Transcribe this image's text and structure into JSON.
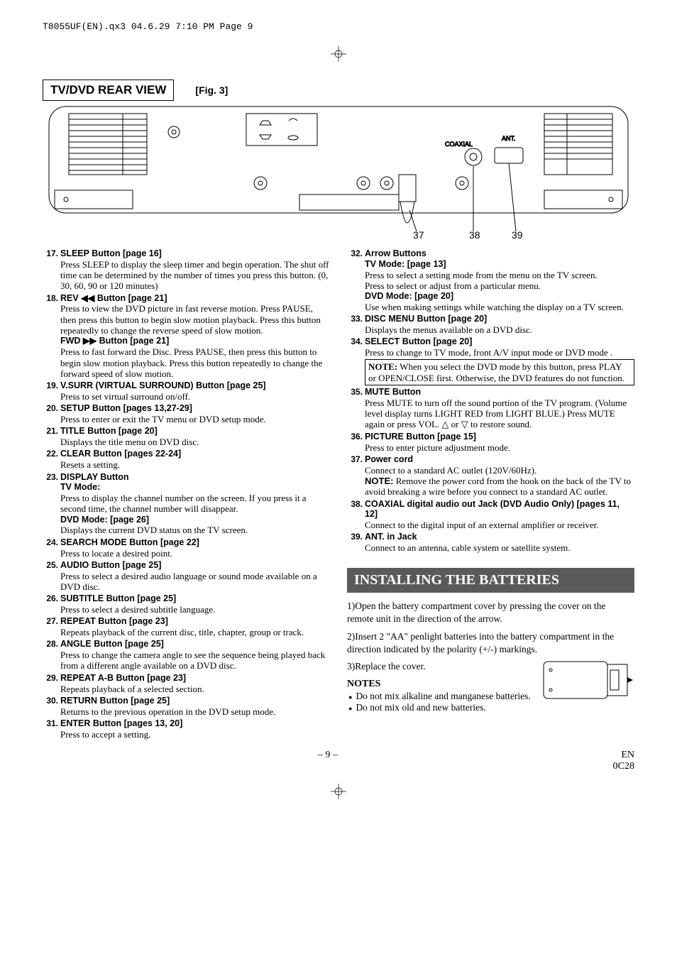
{
  "header": "T8055UF(EN).qx3  04.6.29  7:10 PM  Page 9",
  "rear_view_label": "TV/DVD REAR VIEW",
  "fig_label": "[Fig. 3]",
  "diagram": {
    "coaxial_label": "COAXIAL",
    "ant_label": "ANT.",
    "callouts": [
      "37",
      "38",
      "39"
    ]
  },
  "left": [
    {
      "n": "17.",
      "t": "SLEEP Button [page 16]",
      "d": [
        "Press SLEEP to display the sleep timer and begin operation. The shut off time can be determined by the number of times you press this button. (0, 30, 60, 90 or 120 minutes)"
      ]
    },
    {
      "n": "18.",
      "t": "REV ◀◀ Button [page 21]",
      "d": [
        "Press to view the DVD picture in fast reverse motion. Press PAUSE, then press this button to begin slow motion playback. Press this button repeatedly to change the reverse speed of slow motion."
      ],
      "sub": [
        {
          "t": "FWD ▶▶ Button [page 21]",
          "d": [
            "Press to fast forward the Disc. Press PAUSE, then press this button to begin slow motion playback. Press this button repeatedly to change the forward speed of slow motion."
          ]
        }
      ]
    },
    {
      "n": "19.",
      "t": "V.SURR (VIRTUAL SURROUND) Button [page 25]",
      "d": [
        "Press to set virtual surround on/off."
      ]
    },
    {
      "n": "20.",
      "t": "SETUP Button [pages 13,27-29]",
      "d": [
        "Press to enter or exit the TV menu or DVD setup mode."
      ]
    },
    {
      "n": "21.",
      "t": "TITLE Button [page 20]",
      "d": [
        "Displays the title menu on DVD disc."
      ]
    },
    {
      "n": "22.",
      "t": "CLEAR Button [pages 22-24]",
      "d": [
        "Resets a setting."
      ]
    },
    {
      "n": "23.",
      "t": "DISPLAY Button",
      "sub": [
        {
          "t": "TV Mode:",
          "d": [
            "Press to display the channel number on the screen. If you press it a second time, the channel number will disappear."
          ]
        },
        {
          "t": "DVD Mode: [page 26]",
          "d": [
            "Displays the current DVD status on the TV screen."
          ]
        }
      ]
    },
    {
      "n": "24.",
      "t": "SEARCH MODE Button [page 22]",
      "d": [
        "Press to locate a desired point."
      ]
    },
    {
      "n": "25.",
      "t": "AUDIO Button [page 25]",
      "d": [
        "Press to select a desired audio language or sound mode available on a DVD disc."
      ]
    },
    {
      "n": "26.",
      "t": "SUBTITLE Button [page 25]",
      "d": [
        "Press to select a desired subtitle language."
      ]
    },
    {
      "n": "27.",
      "t": "REPEAT Button [page 23]",
      "d": [
        "Repeats playback of the current disc, title, chapter, group or track."
      ]
    },
    {
      "n": "28.",
      "t": "ANGLE Button [page 25]",
      "d": [
        "Press to change the camera angle to see the sequence being played back from a different angle available on a DVD disc."
      ]
    },
    {
      "n": "29.",
      "t": "REPEAT A-B Button [page 23]",
      "d": [
        "Repeats playback of a selected section."
      ]
    },
    {
      "n": "30.",
      "t": "RETURN Button [page 25]",
      "d": [
        "Returns to the previous operation in the DVD setup mode."
      ]
    },
    {
      "n": "31.",
      "t": "ENTER Button [pages 13, 20]",
      "d": [
        "Press to accept a setting."
      ]
    }
  ],
  "right": [
    {
      "n": "32.",
      "t": "Arrow Buttons",
      "sub": [
        {
          "t": "TV Mode: [page 13]",
          "d": [
            "Press to select a setting mode from the menu on the TV screen.",
            "Press to select or adjust from a particular menu."
          ]
        },
        {
          "t": "DVD Mode: [page 20]",
          "d": [
            "Use when making settings while watching the display on a TV screen."
          ]
        }
      ]
    },
    {
      "n": "33.",
      "t": "DISC MENU Button [page 20]",
      "d": [
        "Displays the menus available on a DVD disc."
      ]
    },
    {
      "n": "34.",
      "t": "SELECT Button [page 20]",
      "d": [
        "Press to change to TV mode, front A/V input mode or DVD mode ."
      ],
      "note": "NOTE: When you select the DVD mode by this button, press PLAY or OPEN/CLOSE first. Otherwise, the DVD features do not function."
    },
    {
      "n": "35.",
      "t": "MUTE Button",
      "d": [
        "Press MUTE to turn off the sound portion of the TV program. (Volume level display turns LIGHT RED from LIGHT BLUE.) Press MUTE again or press VOL. △ or ▽ to restore sound."
      ]
    },
    {
      "n": "36.",
      "t": "PICTURE Button [page 15]",
      "d": [
        "Press to enter picture adjustment mode."
      ]
    },
    {
      "n": "37.",
      "t": "Power cord",
      "d": [
        "Connect to a standard AC outlet (120V/60Hz)."
      ],
      "inline_note": "NOTE:",
      "inline_note_body": [
        "Remove the power cord from the hook on the back of the TV to avoid breaking a wire before you connect to a standard AC outlet."
      ]
    },
    {
      "n": "38.",
      "t": "COAXIAL digital audio out Jack (DVD Audio Only) [pages 11, 12]",
      "d": [
        "Connect to the digital input of an external amplifier or receiver."
      ]
    },
    {
      "n": "39.",
      "t": "ANT. in Jack",
      "d": [
        "Connect to an antenna, cable system or satellite system."
      ]
    }
  ],
  "install": {
    "banner": "INSTALLING THE BATTERIES",
    "steps": [
      "1)Open the battery compartment cover by pressing the cover on the remote unit in the direction of the arrow.",
      "2)Insert 2 \"AA\" penlight batteries into the battery compartment in the direction indicated by the polarity (+/-) markings.",
      "3)Replace the cover."
    ],
    "notes_heading": "NOTES",
    "notes": [
      "Do not mix alkaline and manganese batteries.",
      "Do not mix old and new batteries."
    ]
  },
  "footer": {
    "page": "– 9 –",
    "code1": "EN",
    "code2": "0C28"
  }
}
